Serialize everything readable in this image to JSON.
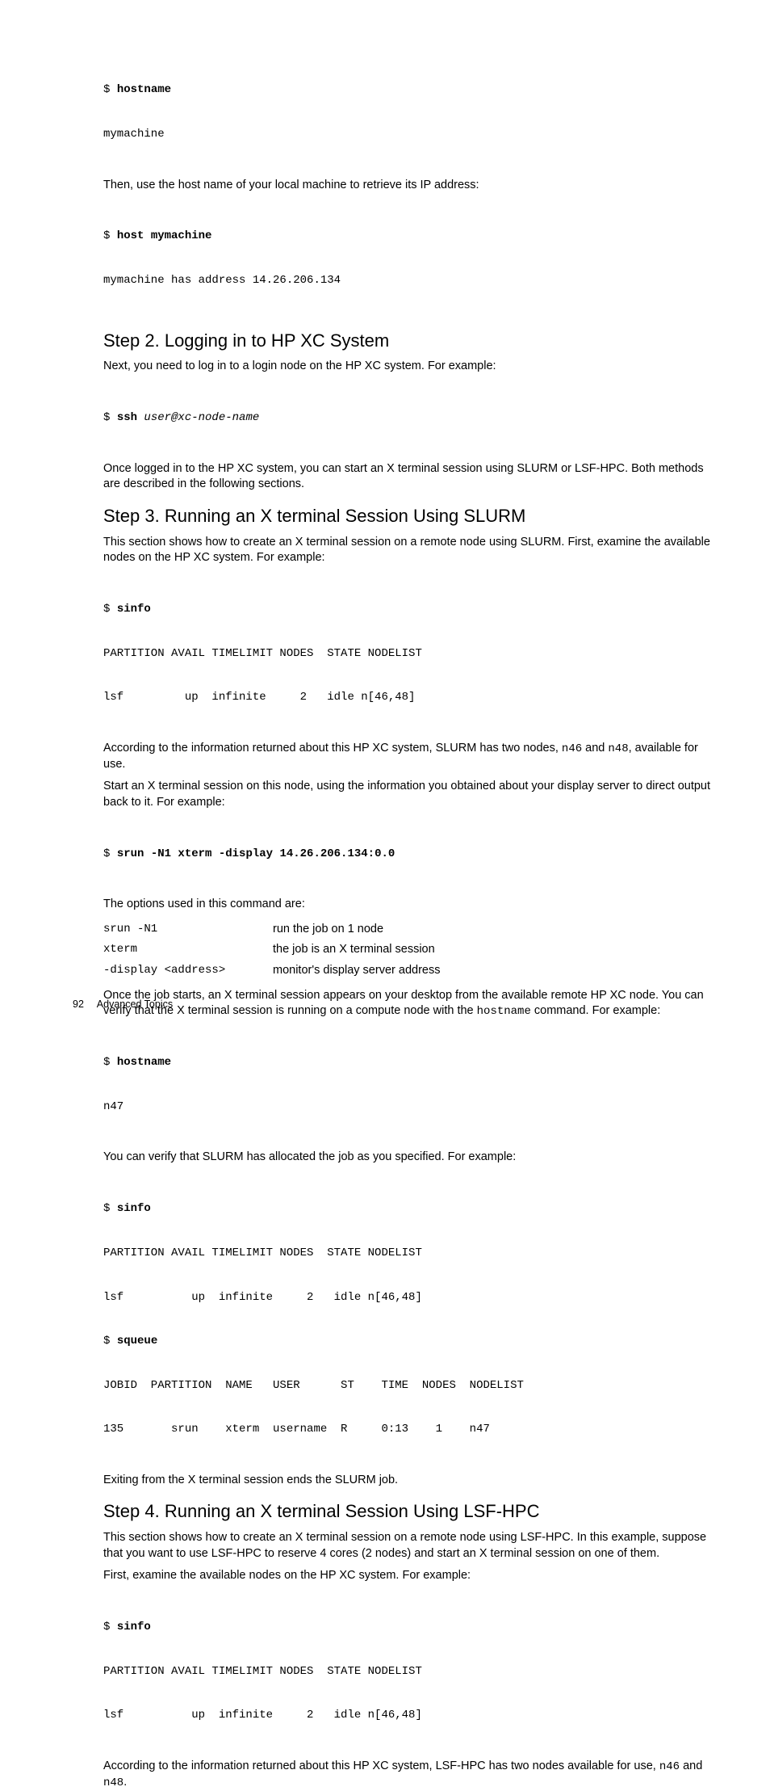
{
  "page_number": "92",
  "footer_text": "Advanced Topics",
  "code1_l1": "$ ",
  "code1_l1_cmd": "hostname",
  "code1_l2": "mymachine",
  "p1": "Then, use the host name of your local machine to retrieve its IP address:",
  "code2_l1": "$ ",
  "code2_l1_cmd": "host mymachine",
  "code2_l2": "mymachine has address 14.26.206.134",
  "h_step2": "Step 2. Logging in to HP XC System",
  "p2": "Next, you need to log in to a login node on the HP XC system. For example:",
  "code3_l1": "$ ",
  "code3_l1_cmd": "ssh ",
  "code3_l1_arg": "user@xc-node-name",
  "p3": "Once logged in to the HP XC system, you can start an X terminal session using SLURM or LSF-HPC. Both methods are described in the following sections.",
  "h_step3": "Step 3. Running an X terminal Session Using SLURM",
  "p4": "This section shows how to create an X terminal session on a remote node using SLURM. First, examine the available nodes on the HP XC system. For example:",
  "code4_l1": "$ ",
  "code4_l1_cmd": "sinfo",
  "code4_l2": "PARTITION AVAIL TIMELIMIT NODES  STATE NODELIST",
  "code4_l3": "lsf         up  infinite     2   idle n[46,48]",
  "p5a": "According to the information returned about this HP XC system, SLURM has two nodes, ",
  "p5_n46": "n46",
  "p5b": " and ",
  "p5_n48": "n48",
  "p5c": ", available for use.",
  "p6": "Start an X terminal session on this node, using the information you obtained about your display server to direct output back to it. For example:",
  "code5_l1": "$ ",
  "code5_l1_cmd": "srun -N1 xterm -display 14.26.206.134:0.0",
  "p7": "The options used in this command are:",
  "opt1_c": "srun -N1",
  "opt1_d": "run the job on 1 node",
  "opt2_c": "xterm",
  "opt2_d": "the job is an X terminal session",
  "opt3_c": "-display <address>",
  "opt3_d": "monitor's display server address",
  "p8a": "Once the job starts, an X terminal session appears on your desktop from the available remote HP XC node. You can verify that the X terminal session is running on a compute node with the ",
  "p8_host": "hostname",
  "p8b": " command. For example:",
  "code6_l1": "$ ",
  "code6_l1_cmd": "hostname",
  "code6_l2": "n47",
  "p9": "You can verify that SLURM has allocated the job as you specified. For example:",
  "code7_l1": "$ ",
  "code7_sinfo": "sinfo",
  "code7_l2": "PARTITION AVAIL TIMELIMIT NODES  STATE NODELIST",
  "code7_l3": "lsf          up  infinite     2   idle n[46,48]",
  "code7_l4": "$ ",
  "code7_squeue": "squeue",
  "code7_l5": "JOBID  PARTITION  NAME   USER      ST    TIME  NODES  NODELIST",
  "code7_l6": "135       srun    xterm  username  R     0:13    1    n47",
  "p10": "Exiting from the X terminal session ends the SLURM job.",
  "h_step4": "Step 4. Running an X terminal Session Using LSF-HPC",
  "p11": "This section shows how to create an X terminal session on a remote node using LSF-HPC. In this example, suppose that you want to use LSF-HPC to reserve 4 cores (2 nodes) and start an X terminal session on one of them.",
  "p12": "First, examine the available nodes on the HP XC system. For example:",
  "code8_l1": "$ ",
  "code8_sinfo": "sinfo",
  "code8_l2": "PARTITION AVAIL TIMELIMIT NODES  STATE NODELIST",
  "code8_l3": "lsf          up  infinite     2   idle n[46,48]",
  "p13a": "According to the information returned about this HP XC system, LSF-HPC has two nodes available for use, ",
  "p13_n46": "n46",
  "p13b": " and ",
  "p13_n48": "n48",
  "p13c": "."
}
